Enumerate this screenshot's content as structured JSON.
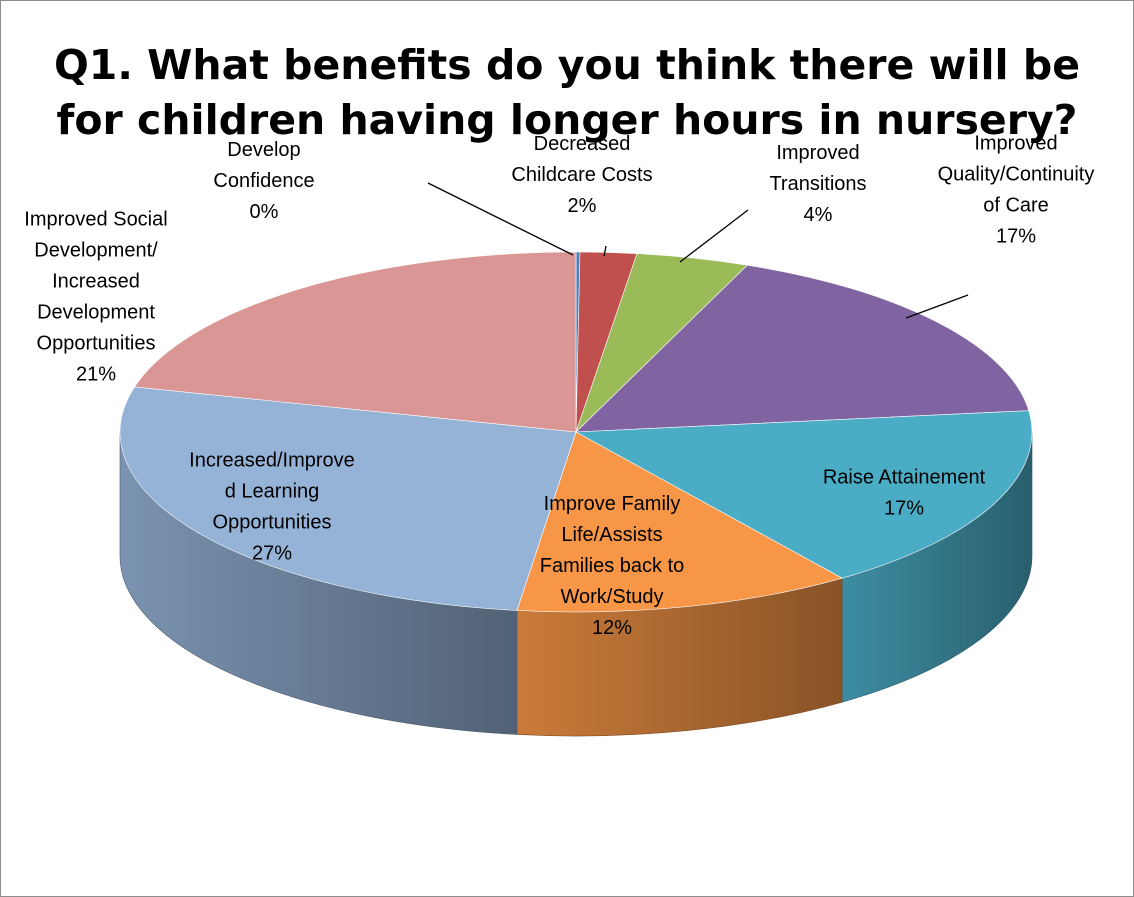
{
  "chart_data": {
    "type": "pie",
    "title_lines": [
      "Q1. What benefits do you think there will be",
      "for children having longer hours in nursery?"
    ],
    "slices": [
      {
        "name": "Develop Confidence",
        "value": 0,
        "label": "0%",
        "label_lines": [
          "Develop",
          "Confidence",
          "0%"
        ],
        "color": "#4f81bd"
      },
      {
        "name": "Decreased Childcare Costs",
        "value": 2,
        "label": "2%",
        "label_lines": [
          "Decreased",
          "Childcare Costs",
          "2%"
        ],
        "color": "#c0504d"
      },
      {
        "name": "Improved Transitions",
        "value": 4,
        "label": "4%",
        "label_lines": [
          "Improved",
          "Transitions",
          "4%"
        ],
        "color": "#9bbb59"
      },
      {
        "name": "Improved Quality/Continuity of Care",
        "value": 17,
        "label": "17%",
        "label_lines": [
          "Improved",
          "Quality/Continuity",
          "of Care",
          "17%"
        ],
        "color": "#8064a2"
      },
      {
        "name": "Raise Attainement",
        "value": 17,
        "label": "17%",
        "label_lines": [
          "Raise Attainement",
          "17%"
        ],
        "color": "#4bacc6"
      },
      {
        "name": "Improve Family Life/Assists Families back to Work/Study",
        "value": 12,
        "label": "12%",
        "label_lines": [
          "Improve Family",
          "Life/Assists",
          "Families back to",
          "Work/Study",
          "12%"
        ],
        "color": "#f79646"
      },
      {
        "name": "Increased/Improved Learning Opportunities",
        "value": 27,
        "label": "27%",
        "label_lines": [
          "Increased/Improve",
          "d Learning",
          "Opportunities",
          "27%"
        ],
        "color": "#95b3d7"
      },
      {
        "name": "Improved Social Development/ Increased Development Opportunities",
        "value": 21,
        "label": "21%",
        "label_lines": [
          "Improved Social",
          "Development/",
          "Increased",
          "Development",
          "Opportunities",
          "21%"
        ],
        "color": "#d99694"
      }
    ]
  }
}
